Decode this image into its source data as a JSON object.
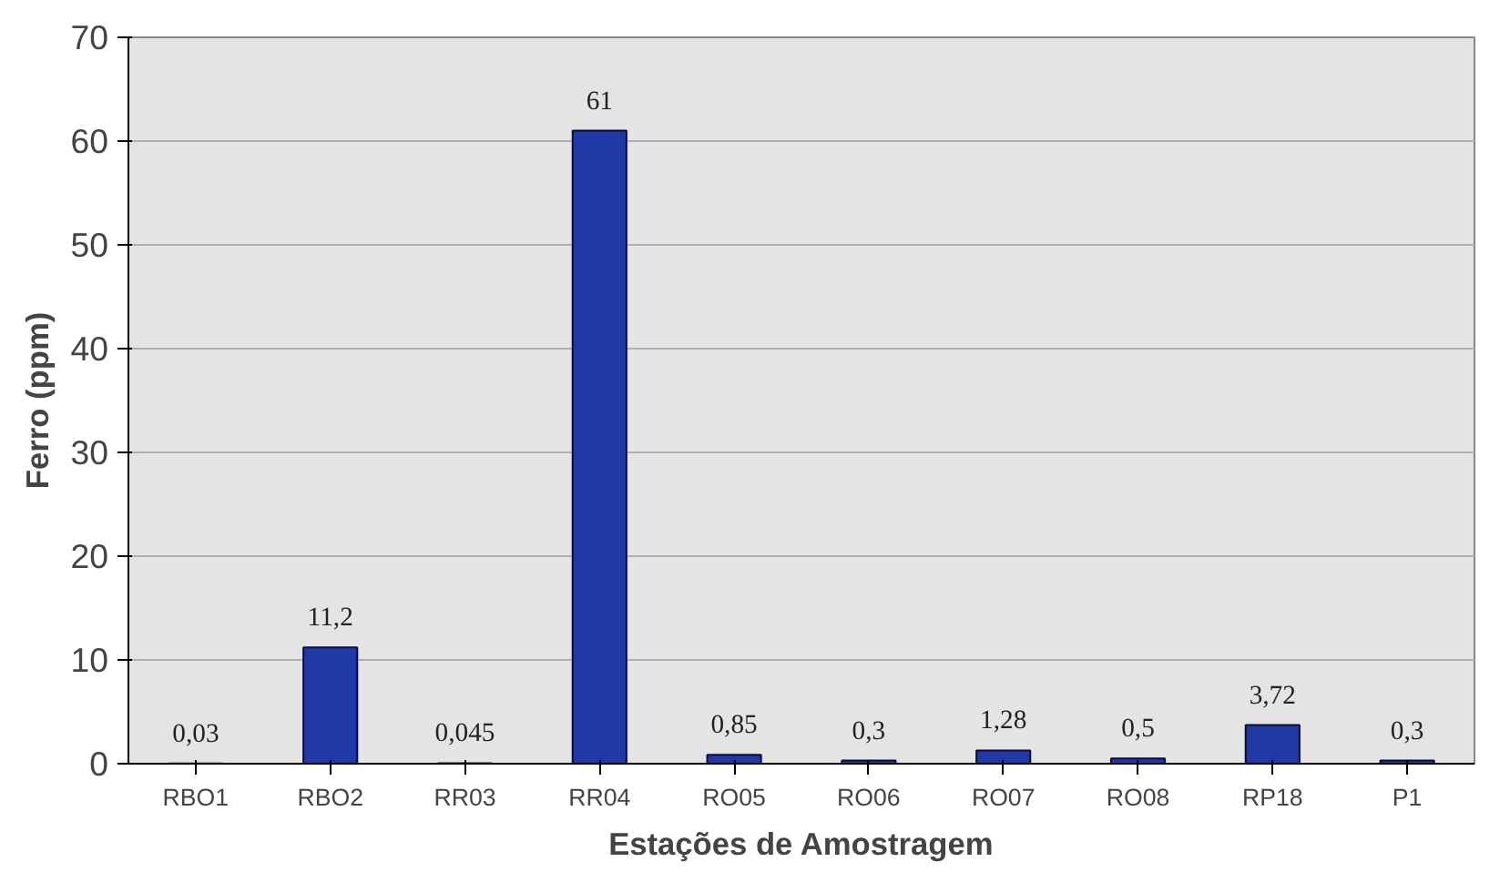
{
  "chart_data": {
    "type": "bar",
    "xlabel": "Estações de Amostragem",
    "ylabel": "Ferro (ppm)",
    "categories": [
      "RBO1",
      "RBO2",
      "RR03",
      "RR04",
      "RO05",
      "RO06",
      "RO07",
      "RO08",
      "RP18",
      "P1"
    ],
    "values": [
      0.03,
      11.2,
      0.045,
      61,
      0.85,
      0.3,
      1.28,
      0.5,
      3.72,
      0.3
    ],
    "value_labels": [
      "0,03",
      "11,2",
      "0,045",
      "61",
      "0,85",
      "0,3",
      "1,28",
      "0,5",
      "3,72",
      "0,3"
    ],
    "color": "#1f3aa6",
    "ylim": [
      0,
      70
    ],
    "yticks": [
      0,
      10,
      20,
      30,
      40,
      50,
      60,
      70
    ],
    "grid": "y"
  }
}
